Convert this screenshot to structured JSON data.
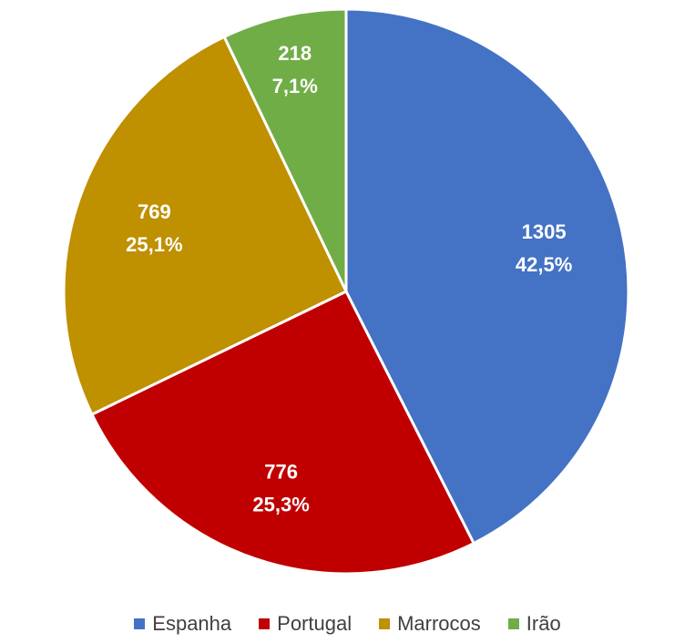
{
  "chart_data": {
    "type": "pie",
    "title": "",
    "legend": "bottom",
    "slices": [
      {
        "name": "Espanha",
        "value": 1305,
        "percent_label": "42,5%",
        "color": "#4472C4"
      },
      {
        "name": "Portugal",
        "value": 776,
        "percent_label": "25,3%",
        "color": "#C00000"
      },
      {
        "name": "Marrocos",
        "value": 769,
        "percent_label": "25,1%",
        "color": "#BF9000"
      },
      {
        "name": "Irão",
        "value": 218,
        "percent_label": "7,1%",
        "color": "#70AD47"
      }
    ]
  }
}
